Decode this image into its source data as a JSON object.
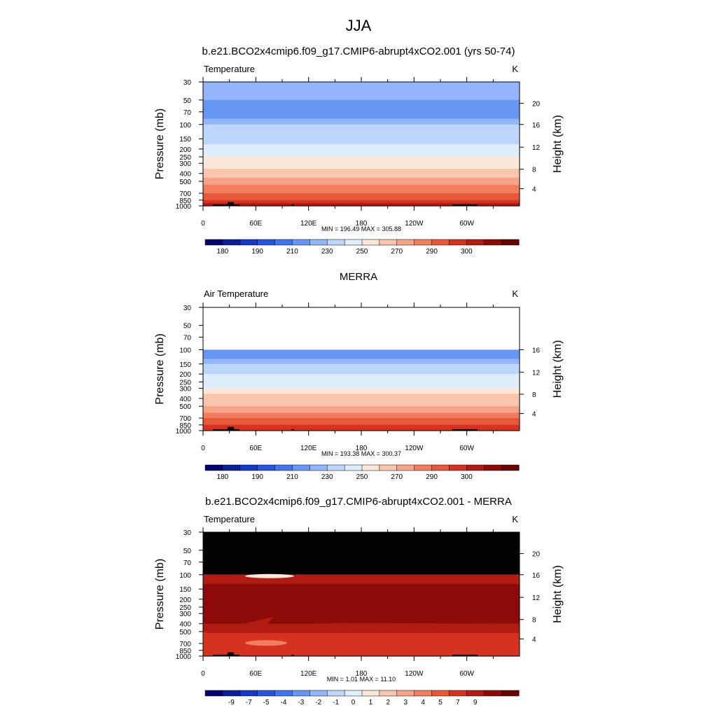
{
  "figure_title": "JJA",
  "chart_data": [
    {
      "type": "heatmap",
      "title": "b.e21.BCO2x4cmip6.f09_g17.CMIP6-abrupt4xCO2.001 (yrs 50-74)",
      "left_label": "Temperature",
      "units": "K",
      "ylabel": "Pressure (mb)",
      "ylabel_right": "Height (km)",
      "xticks": [
        "0",
        "60E",
        "120E",
        "180",
        "120W",
        "60W"
      ],
      "yticks": [
        "30",
        "50",
        "70",
        "100",
        "150",
        "200",
        "250",
        "300",
        "400",
        "500",
        "700",
        "850",
        "1000"
      ],
      "yticks_right": [
        "20",
        "16",
        "12",
        "8",
        "4"
      ],
      "minmax": "MIN = 196.49  MAX = 305.88",
      "colorbar_labels": [
        "180",
        "190",
        "210",
        "230",
        "250",
        "270",
        "290",
        "300"
      ],
      "x": [
        "0",
        "60E",
        "120E",
        "180",
        "120W",
        "60W"
      ],
      "y": [
        "30",
        "50",
        "70",
        "100",
        "150",
        "200",
        "250",
        "300",
        "400",
        "500",
        "700",
        "850",
        "1000"
      ],
      "values_approx_K": [
        209,
        207,
        204,
        205,
        214,
        219,
        224,
        230,
        243,
        255,
        272,
        284,
        296
      ],
      "data_min": 196.49,
      "data_max": 305.88
    },
    {
      "type": "heatmap",
      "title": "MERRA",
      "left_label": "Air Temperature",
      "units": "K",
      "ylabel": "Pressure (mb)",
      "ylabel_right": "Height (km)",
      "xticks": [
        "0",
        "60E",
        "120E",
        "180",
        "120W",
        "60W"
      ],
      "yticks": [
        "30",
        "50",
        "70",
        "100",
        "150",
        "200",
        "250",
        "300",
        "400",
        "500",
        "700",
        "850",
        "1000"
      ],
      "yticks_right": [
        "16",
        "12",
        "8",
        "4"
      ],
      "minmax": "MIN = 193.38  MAX = 300.37",
      "colorbar_labels": [
        "180",
        "190",
        "210",
        "230",
        "250",
        "270",
        "290",
        "300"
      ],
      "x": [
        "0",
        "60E",
        "120E",
        "180",
        "120W",
        "60W"
      ],
      "y": [
        "100",
        "150",
        "200",
        "250",
        "300",
        "400",
        "500",
        "700",
        "850",
        "1000"
      ],
      "values_approx_K": [
        198,
        208,
        215,
        222,
        229,
        242,
        254,
        270,
        281,
        293
      ],
      "data_min": 193.38,
      "data_max": 300.37
    },
    {
      "type": "heatmap",
      "title": "b.e21.BCO2x4cmip6.f09_g17.CMIP6-abrupt4xCO2.001 - MERRA",
      "left_label": "Temperature",
      "units": "K",
      "ylabel": "Pressure (mb)",
      "ylabel_right": "Height (km)",
      "xticks": [
        "0",
        "60E",
        "120E",
        "180",
        "120W",
        "60W"
      ],
      "yticks": [
        "30",
        "50",
        "70",
        "100",
        "150",
        "200",
        "250",
        "300",
        "400",
        "500",
        "700",
        "850",
        "1000"
      ],
      "yticks_right": [
        "20",
        "16",
        "12",
        "8",
        "4"
      ],
      "minmax": "MIN =   1.01  MAX =  11.10",
      "colorbar_labels": [
        "-9",
        "-7",
        "-5",
        "-4",
        "-3",
        "-2",
        "-1",
        "0",
        "1",
        "2",
        "3",
        "4",
        "5",
        "7",
        "9"
      ],
      "x": [
        "0",
        "60E",
        "120E",
        "180",
        "120W",
        "60W"
      ],
      "y": [
        "100",
        "150",
        "200",
        "250",
        "300",
        "400",
        "500",
        "700",
        "850",
        "1000"
      ],
      "values_approx_K": [
        7,
        10,
        10,
        10,
        10,
        9,
        7,
        6,
        5,
        5
      ],
      "data_min": 1.01,
      "data_max": 11.1
    }
  ],
  "colors": {
    "temperature_scale": [
      "#00036b",
      "#0d1f96",
      "#1439c3",
      "#2955de",
      "#4176ec",
      "#6796f4",
      "#93b6fa",
      "#bed6fb",
      "#e0edfd",
      "#fde7d9",
      "#fbc6ae",
      "#f7a388",
      "#f27e5f",
      "#e9573b",
      "#d5331f",
      "#b21b12",
      "#8c0a08",
      "#680000"
    ],
    "difference_scale": [
      "#00036b",
      "#0d1f96",
      "#1439c3",
      "#2955de",
      "#4176ec",
      "#6796f4",
      "#93b6fa",
      "#bed6fb",
      "#e0edfd",
      "#fde7d9",
      "#fbc6ae",
      "#f7a388",
      "#f27e5f",
      "#e9573b",
      "#d5331f",
      "#b21b12",
      "#8c0a08",
      "#680000"
    ],
    "missing": "#000000"
  }
}
